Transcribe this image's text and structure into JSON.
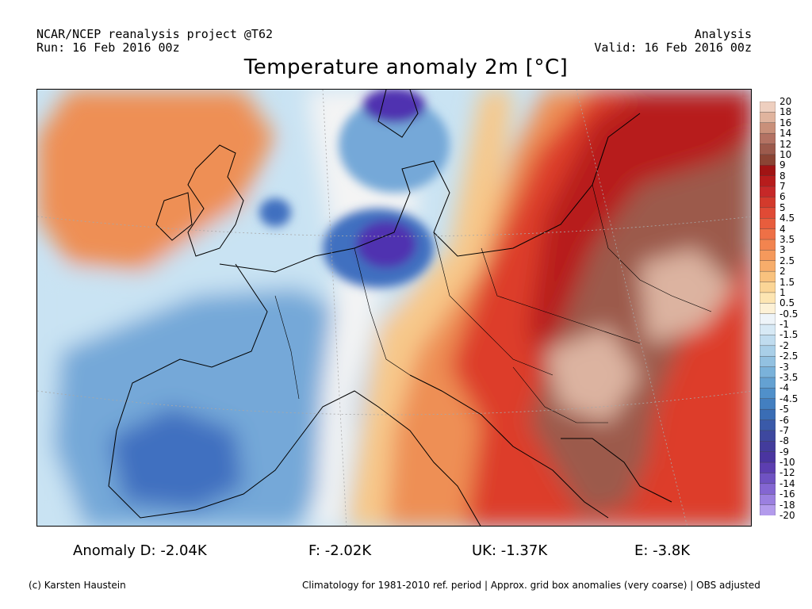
{
  "header": {
    "project": "NCAR/NCEP reanalysis project @T62",
    "run": "Run: 16 Feb 2016 00z",
    "analysis": "Analysis",
    "valid": "Valid: 16 Feb 2016 00z"
  },
  "title": "Temperature anomaly 2m [°C]",
  "map": {
    "region": "Europe",
    "variable": "2m temperature anomaly",
    "colors": {
      "deep_blue": "#5030b0",
      "blue": "#3f6fc0",
      "mid_blue": "#74a8d8",
      "light_blue": "#c9e3f3",
      "white": "#f4f4f4",
      "light_orange": "#f7c88a",
      "orange": "#ee8f55",
      "red": "#dd3c2c",
      "dark_red": "#b71c1c",
      "brown": "#9c5a4c",
      "light_brown": "#dcb3a0"
    }
  },
  "colorbar": {
    "labels": [
      "20",
      "18",
      "16",
      "14",
      "12",
      "10",
      "9",
      "8",
      "7",
      "6",
      "5",
      "4.5",
      "4",
      "3.5",
      "3",
      "2.5",
      "2",
      "1.5",
      "1",
      "0.5",
      "-0.5",
      "-1",
      "-1.5",
      "-2",
      "-2.5",
      "-3",
      "-3.5",
      "-4",
      "-4.5",
      "-5",
      "-6",
      "-7",
      "-8",
      "-9",
      "-10",
      "-12",
      "-14",
      "-16",
      "-18",
      "-20"
    ],
    "colors": [
      "#eecfbf",
      "#e0b49e",
      "#c9907a",
      "#b37263",
      "#9c5a4c",
      "#8b4434",
      "#a11414",
      "#b71c1c",
      "#c62828",
      "#d33a2c",
      "#e04a35",
      "#e85d3d",
      "#ee7046",
      "#f2844f",
      "#f5995c",
      "#f7ad6b",
      "#f9c27e",
      "#fbd596",
      "#fde5b2",
      "#fdf1d6",
      "#eef4f9",
      "#d7e9f5",
      "#c0dcef",
      "#a9cfe8",
      "#92c1e1",
      "#7ab2da",
      "#64a1d2",
      "#5090ca",
      "#437fc0",
      "#3a6db5",
      "#3a5aa9",
      "#3e489f",
      "#433c9c",
      "#4a35a0",
      "#5c3eb0",
      "#6f52c2",
      "#8466d2",
      "#9b80e0",
      "#b39bec",
      "#ccc0f7"
    ]
  },
  "stats": {
    "anomaly_d": "Anomaly D: -2.04K",
    "f": "F: -2.02K",
    "uk": "UK: -1.37K",
    "e": "E: -3.8K"
  },
  "footer": {
    "copyright": "(c) Karsten Haustein",
    "climatology": "Climatology for 1981-2010 ref. period | Approx. grid box anomalies (very coarse) | OBS adjusted"
  }
}
